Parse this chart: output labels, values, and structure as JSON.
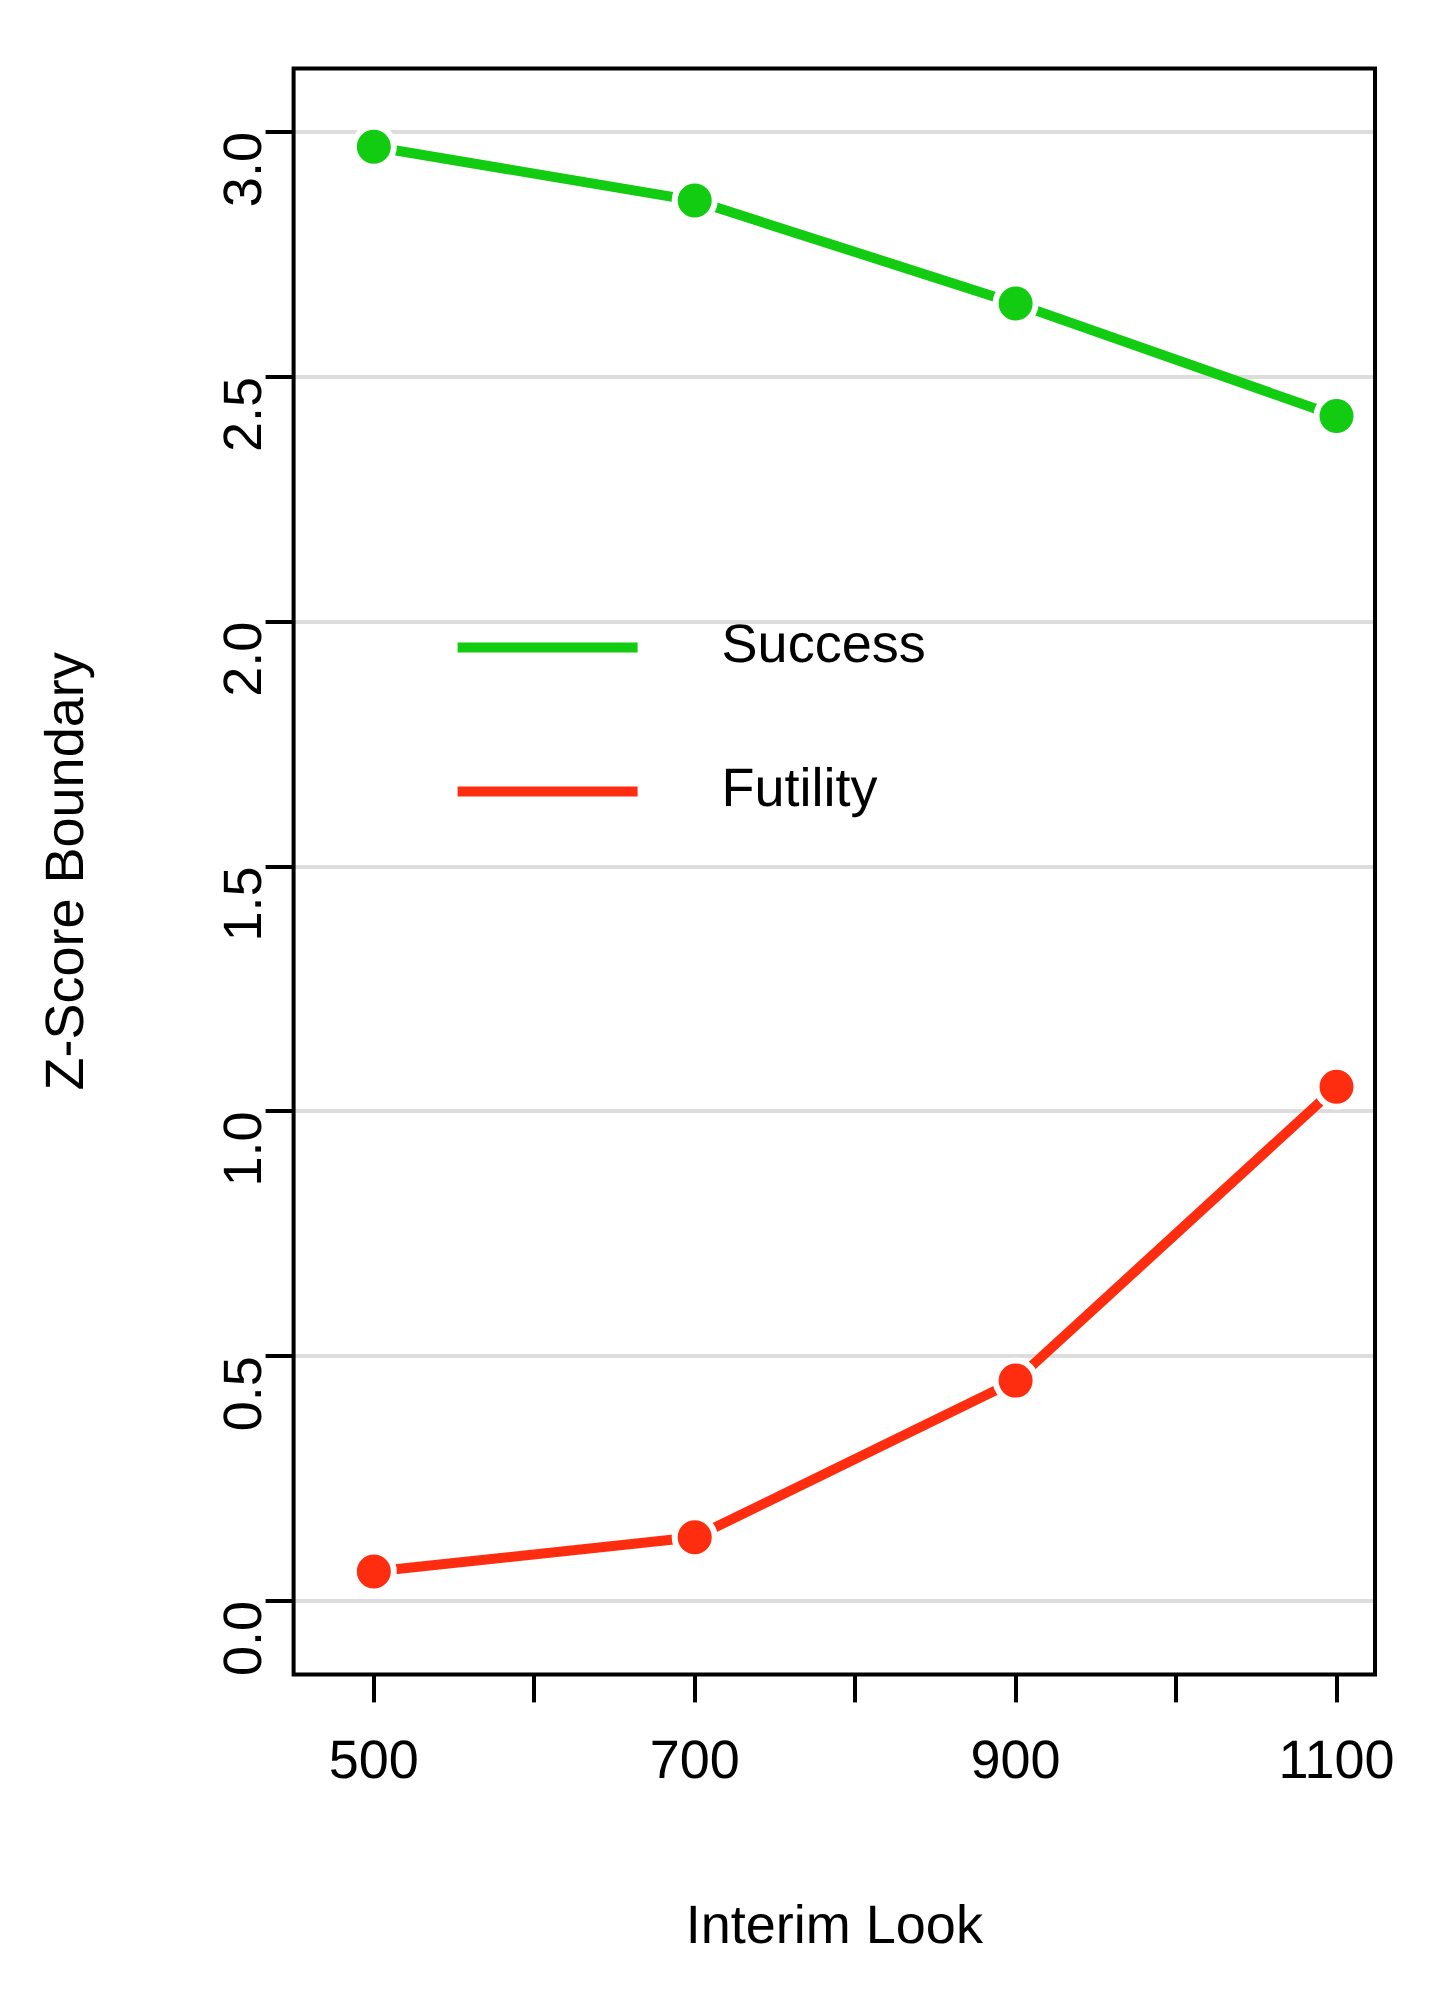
{
  "chart_data": {
    "type": "line",
    "xlabel": "Interim Look",
    "ylabel": "Z-Score Boundary",
    "x": [
      500,
      700,
      900,
      1100
    ],
    "series": [
      {
        "name": "Success",
        "color": "#11cc11",
        "values": [
          2.97,
          2.86,
          2.65,
          2.42
        ]
      },
      {
        "name": "Futility",
        "color": "#ff2d0f",
        "values": [
          0.06,
          0.13,
          0.45,
          1.05
        ]
      }
    ],
    "xlim": [
      450,
      1124
    ],
    "ylim": [
      -0.15,
      3.13
    ],
    "xticks": [
      500,
      {
        "value": 600,
        "label": null
      },
      700,
      {
        "value": 800,
        "label": null
      },
      900,
      {
        "value": 1000,
        "label": null
      },
      1100
    ],
    "yticks": [
      {
        "value": 0,
        "label": "0.0"
      },
      {
        "value": 0.5,
        "label": "0.5"
      },
      {
        "value": 1,
        "label": "1.0"
      },
      {
        "value": 1.5,
        "label": "1.5"
      },
      {
        "value": 2,
        "label": "2.0"
      },
      {
        "value": 2.5,
        "label": "2.5"
      },
      {
        "value": 3,
        "label": "3.0"
      }
    ],
    "grid": "y",
    "legend": "left",
    "marker": "circle",
    "line_style": "solid"
  }
}
